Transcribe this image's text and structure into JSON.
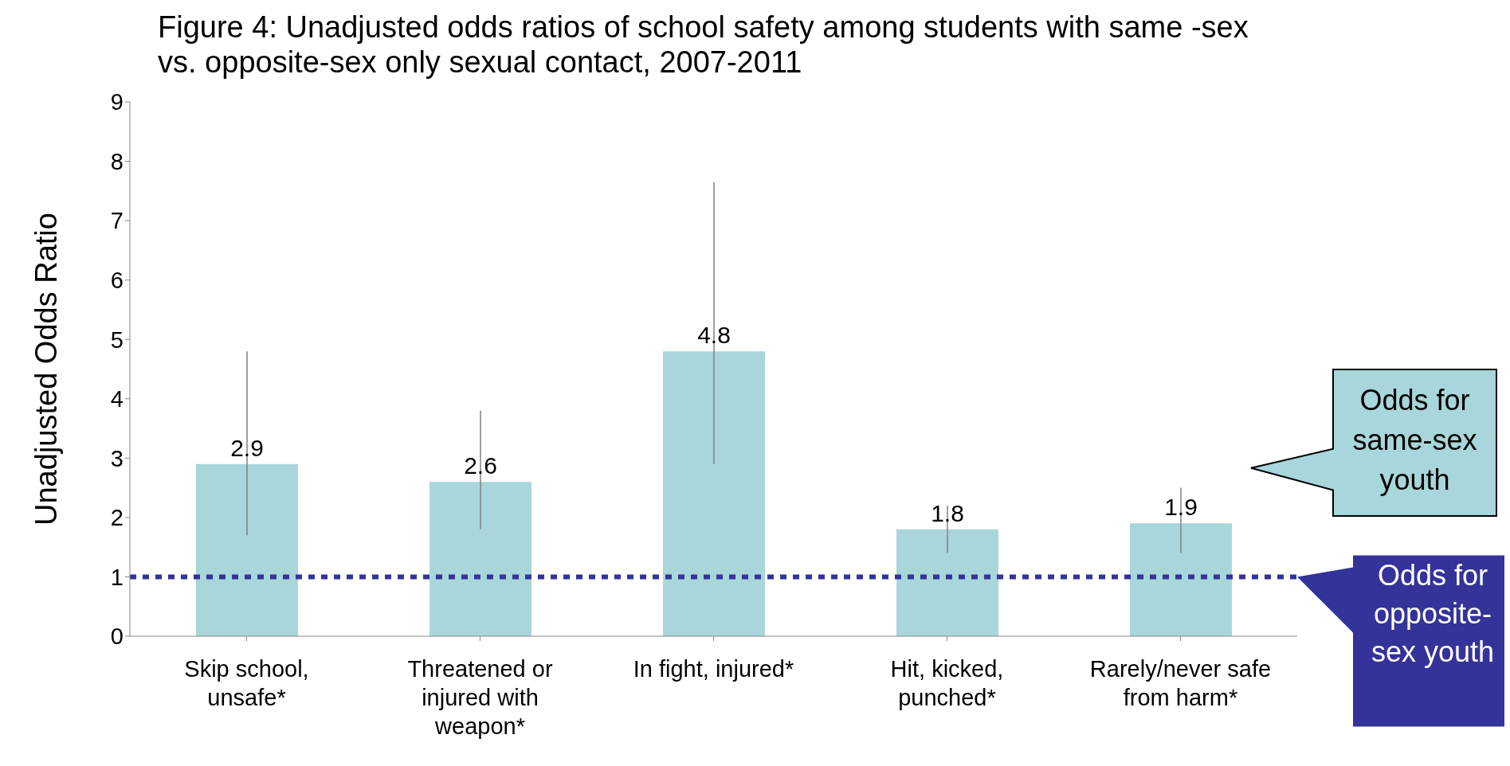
{
  "chart_data": {
    "type": "bar",
    "title": "Figure 4: Unadjusted odds ratios of school safety among students with same -sex vs. opposite-sex only sexual contact, 2007-2011",
    "ylabel": "Unadjusted Odds Ratio",
    "categories": [
      "Skip school, unsafe*",
      "Threatened or injured with weapon*",
      "In fight, injured*",
      "Hit, kicked, punched*",
      "Rarely/never safe from harm*"
    ],
    "values": [
      2.9,
      2.6,
      4.8,
      1.8,
      1.9
    ],
    "errors": [
      [
        1.7,
        4.8
      ],
      [
        1.8,
        3.8
      ],
      [
        2.9,
        7.65
      ],
      [
        1.4,
        2.2
      ],
      [
        1.4,
        2.5
      ]
    ],
    "color": "#a8d6da",
    "data_labels": true,
    "ylim": [
      0,
      9
    ],
    "yticks": [
      0,
      1,
      2,
      3,
      4,
      5,
      6,
      7,
      8,
      9
    ],
    "grid": false,
    "legend": false,
    "ref_lines": [
      {
        "axis": "y",
        "value": 1,
        "label": "Odds for opposite-sex youth",
        "color": "#333399",
        "line_style": "dotted"
      }
    ],
    "annotations": [
      "Odds for same-sex youth"
    ]
  }
}
